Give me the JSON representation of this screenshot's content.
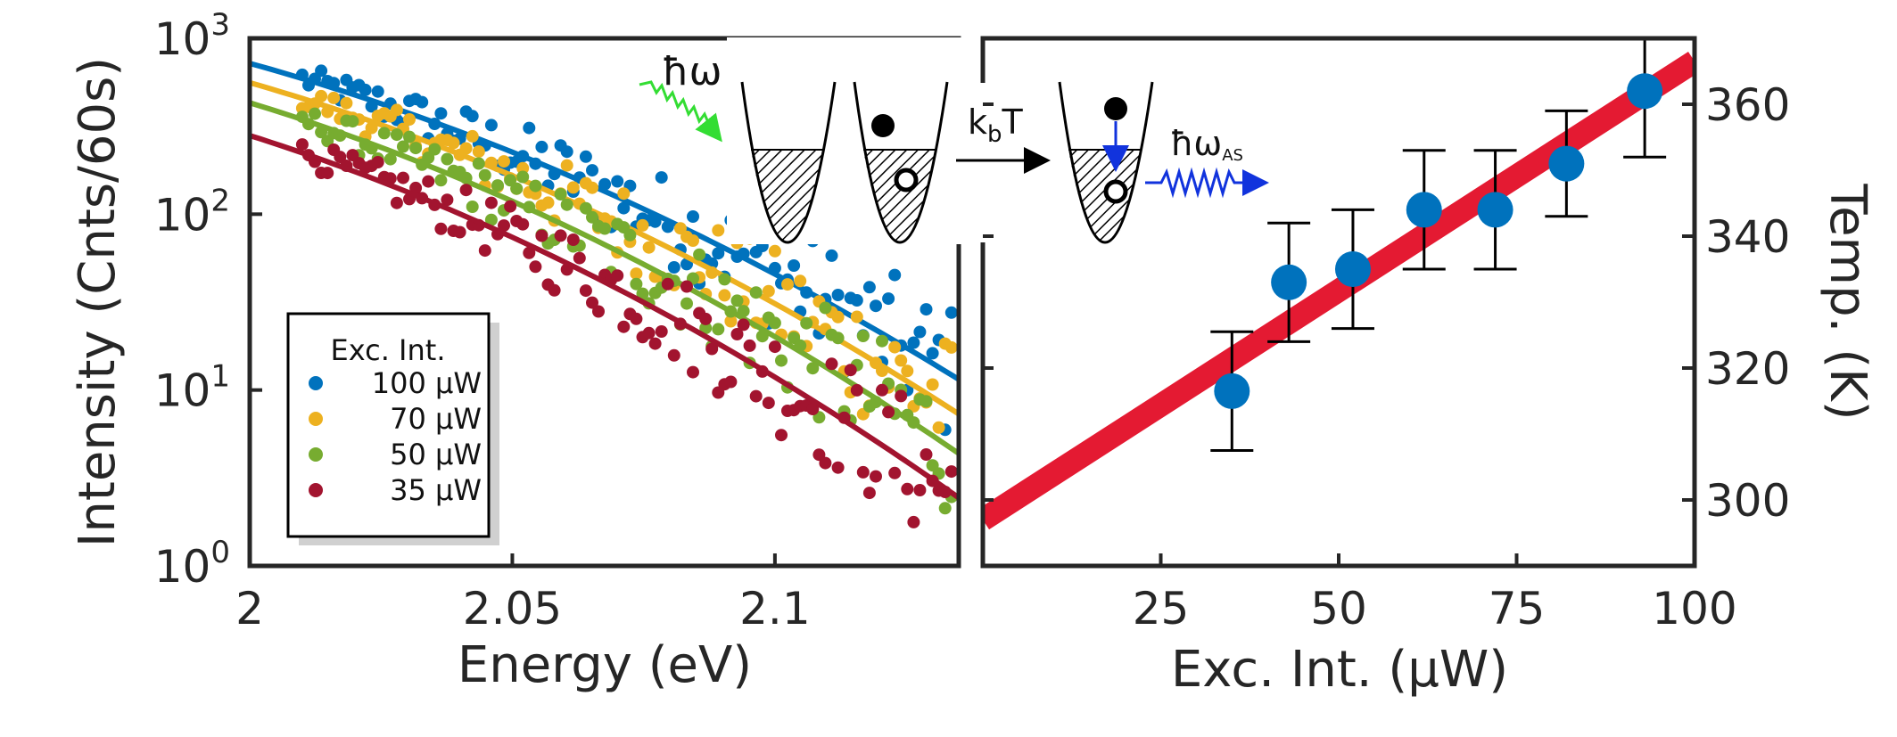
{
  "colors": {
    "s100": "#0072BD",
    "s70": "#EDB120",
    "s50": "#77AC30",
    "s35": "#A2142F",
    "fit": "#E41A32",
    "axis": "#262626",
    "photon_in": "#33DD33",
    "photon_out": "#1133DD"
  },
  "chart_data": [
    {
      "type": "scatter",
      "xlabel": "Energy (eV)",
      "ylabel": "Intensity (Cnts/60s)",
      "xlim": [
        2.0,
        2.135
      ],
      "ylim": [
        1,
        1000
      ],
      "yscale": "log",
      "x_ticks": [
        2.0,
        2.05,
        2.1
      ],
      "x_tick_labels": [
        "2",
        "2.05",
        "2.1"
      ],
      "y_ticks": [
        1,
        10,
        100,
        1000
      ],
      "y_tick_labels": [
        {
          "base": "10",
          "exp": "0"
        },
        {
          "base": "10",
          "exp": "1"
        },
        {
          "base": "10",
          "exp": "2"
        },
        {
          "base": "10",
          "exp": "3"
        }
      ],
      "legend": {
        "title": "Exc. Int.",
        "placement": "lower-left"
      },
      "series": [
        {
          "name": "100 μW",
          "color_key": "s100",
          "fit_y0": 720,
          "fit_slope": -8.2
        },
        {
          "name": "70 μW",
          "color_key": "s70",
          "fit_y0": 560,
          "fit_slope": -8.6
        },
        {
          "name": "50 μW",
          "color_key": "s50",
          "fit_y0": 430,
          "fit_slope": -9.1
        },
        {
          "name": "35 μW",
          "color_key": "s35",
          "fit_y0": 280,
          "fit_slope": -9.4
        }
      ],
      "inset": {
        "photon_in_label": "ħω",
        "transfer_label_main": "k",
        "transfer_label_sub": "b",
        "transfer_label_tail": "T",
        "photon_out_label_main": "ħω",
        "photon_out_label_sub": "AS"
      }
    },
    {
      "type": "scatter",
      "xlabel": "Exc. Int. (μW)",
      "ylabel": "Temp. (K)",
      "xlim": [
        0,
        100
      ],
      "ylim": [
        290,
        370
      ],
      "x_ticks": [
        25,
        50,
        75,
        100
      ],
      "y_ticks": [
        300,
        320,
        340,
        360
      ],
      "y_minor_ticks": [
        300,
        320,
        340,
        360
      ],
      "points": [
        {
          "x": 35,
          "y": 316.5,
          "err": 9
        },
        {
          "x": 43,
          "y": 333,
          "err": 9
        },
        {
          "x": 52,
          "y": 335,
          "err": 9
        },
        {
          "x": 62,
          "y": 344,
          "err": 9
        },
        {
          "x": 72,
          "y": 344,
          "err": 9
        },
        {
          "x": 82,
          "y": 351,
          "err": 8
        },
        {
          "x": 93,
          "y": 362,
          "err": 10
        }
      ],
      "fit_line": {
        "x": [
          0,
          100
        ],
        "y": [
          297,
          366.5
        ]
      }
    }
  ]
}
